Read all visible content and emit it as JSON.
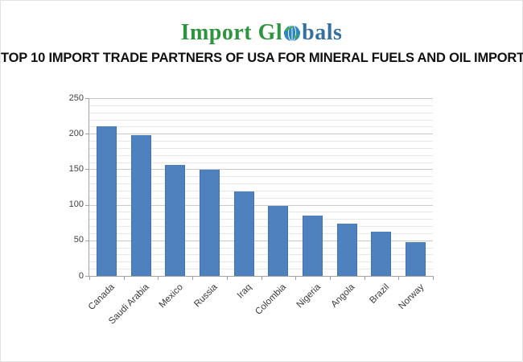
{
  "logo": {
    "text_before_globe": "Import Gl",
    "text_after_globe": "bals",
    "green_color": "#2e9440",
    "blue_color": "#35709f",
    "globe_blue": "#2e86c1",
    "globe_green": "#3fae49"
  },
  "title": "TOP 10 IMPORT TRADE PARTNERS OF USA FOR MINERAL FUELS AND OIL IMPORT",
  "chart_data": {
    "type": "bar",
    "title": "",
    "xlabel": "",
    "ylabel": "",
    "categories": [
      "Canada",
      "Saudi Arabia",
      "Mexico",
      "Russia",
      "Iraq",
      "Colombia",
      "Nigeria",
      "Angola",
      "Brazil",
      "Norway"
    ],
    "values": [
      210,
      198,
      156,
      149,
      119,
      98,
      85,
      74,
      62,
      48
    ],
    "ylim": [
      0,
      250
    ],
    "y_major_step": 50,
    "y_minor_step": 10,
    "grid": "on",
    "legend_position": "none",
    "bar_color": "#4e81bd",
    "bar_border_color": "#4173ac",
    "grid_minor_color": "#e7e7e7",
    "grid_major_color": "#c9c9c9",
    "axis_color": "#a3a3a3",
    "tick_label_color": "#3f3f3f"
  }
}
